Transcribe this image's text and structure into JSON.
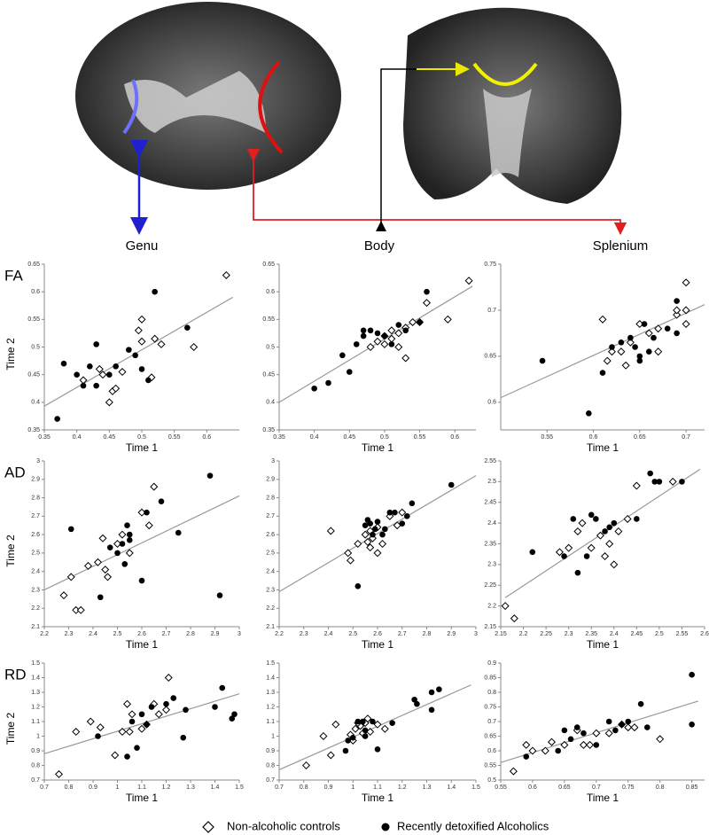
{
  "figure": {
    "regions": [
      "Genu",
      "Body",
      "Splenium"
    ]
  },
  "chart_data": [
    {
      "type": "scatter",
      "label": "FA",
      "xlabel": "Time 1",
      "ylabel": "Time 2",
      "xlim": [
        0.35,
        0.65
      ],
      "xticks": [
        0.35,
        0.4,
        0.45,
        0.5,
        0.55,
        0.6
      ],
      "ylim": [
        0.35,
        0.65
      ],
      "yticks": [
        0.35,
        0.4,
        0.45,
        0.5,
        0.55,
        0.6,
        0.65
      ],
      "series": [
        {
          "name": "Non-alcoholic controls",
          "marker": "diamond",
          "color": "#000000",
          "x": [
            0.63,
            0.5,
            0.58,
            0.53,
            0.52,
            0.5,
            0.515,
            0.47,
            0.455,
            0.46,
            0.45,
            0.44,
            0.435,
            0.41,
            0.495
          ],
          "values": [
            0.63,
            0.55,
            0.5,
            0.505,
            0.515,
            0.51,
            0.445,
            0.455,
            0.42,
            0.425,
            0.4,
            0.45,
            0.46,
            0.44,
            0.53
          ]
        },
        {
          "name": "Recently detoxified Alcoholics",
          "marker": "circle",
          "color": "#000000",
          "x": [
            0.37,
            0.38,
            0.4,
            0.41,
            0.42,
            0.43,
            0.43,
            0.45,
            0.46,
            0.48,
            0.49,
            0.5,
            0.51,
            0.52,
            0.57
          ],
          "values": [
            0.37,
            0.47,
            0.45,
            0.43,
            0.465,
            0.43,
            0.505,
            0.45,
            0.465,
            0.495,
            0.485,
            0.46,
            0.44,
            0.6,
            0.535
          ]
        }
      ],
      "trendline": {
        "color": "#999999",
        "x": [
          0.35,
          0.64
        ],
        "values": [
          0.393,
          0.59
        ]
      }
    },
    {
      "type": "scatter",
      "xlabel": "Time 1",
      "xlim": [
        0.35,
        0.63
      ],
      "xticks": [
        0.35,
        0.4,
        0.45,
        0.5,
        0.55,
        0.6
      ],
      "ylim": [
        0.35,
        0.65
      ],
      "yticks": [
        0.35,
        0.4,
        0.45,
        0.5,
        0.55,
        0.6,
        0.65
      ],
      "series": [
        {
          "marker": "diamond",
          "color": "#000000",
          "x": [
            0.62,
            0.56,
            0.59,
            0.53,
            0.54,
            0.53,
            0.52,
            0.51,
            0.5,
            0.49,
            0.48,
            0.5,
            0.52,
            0.55,
            0.51
          ],
          "values": [
            0.62,
            0.58,
            0.55,
            0.48,
            0.545,
            0.535,
            0.525,
            0.515,
            0.505,
            0.51,
            0.5,
            0.52,
            0.5,
            0.545,
            0.53
          ]
        },
        {
          "marker": "circle",
          "color": "#000000",
          "x": [
            0.4,
            0.42,
            0.44,
            0.45,
            0.46,
            0.47,
            0.48,
            0.49,
            0.5,
            0.51,
            0.52,
            0.53,
            0.55,
            0.56,
            0.47
          ],
          "values": [
            0.425,
            0.435,
            0.485,
            0.455,
            0.505,
            0.52,
            0.53,
            0.525,
            0.52,
            0.505,
            0.54,
            0.53,
            0.545,
            0.6,
            0.53
          ]
        }
      ],
      "trendline": {
        "color": "#999999",
        "x": [
          0.35,
          0.625
        ],
        "values": [
          0.4,
          0.61
        ]
      }
    },
    {
      "type": "scatter",
      "xlabel": "Time 1",
      "xlim": [
        0.5,
        0.72
      ],
      "xticks": [
        0.55,
        0.6,
        0.65,
        0.7
      ],
      "ylim": [
        0.57,
        0.75
      ],
      "yticks": [
        0.6,
        0.65,
        0.7,
        0.75
      ],
      "series": [
        {
          "marker": "diamond",
          "color": "#000000",
          "x": [
            0.7,
            0.61,
            0.7,
            0.69,
            0.7,
            0.67,
            0.66,
            0.65,
            0.64,
            0.63,
            0.62,
            0.615,
            0.67,
            0.635,
            0.69
          ],
          "values": [
            0.73,
            0.69,
            0.7,
            0.695,
            0.685,
            0.68,
            0.675,
            0.685,
            0.665,
            0.655,
            0.655,
            0.645,
            0.655,
            0.64,
            0.7
          ]
        },
        {
          "marker": "circle",
          "color": "#000000",
          "x": [
            0.545,
            0.595,
            0.61,
            0.62,
            0.63,
            0.64,
            0.645,
            0.65,
            0.65,
            0.66,
            0.665,
            0.68,
            0.69,
            0.69,
            0.655
          ],
          "values": [
            0.645,
            0.588,
            0.632,
            0.66,
            0.665,
            0.67,
            0.66,
            0.65,
            0.645,
            0.655,
            0.67,
            0.68,
            0.675,
            0.71,
            0.685
          ]
        }
      ],
      "trendline": {
        "color": "#999999",
        "x": [
          0.5,
          0.72
        ],
        "values": [
          0.605,
          0.706
        ]
      }
    },
    {
      "type": "scatter",
      "label": "AD",
      "xlabel": "Time 1",
      "ylabel": "Time 2",
      "xlim": [
        2.2,
        3
      ],
      "xticks": [
        2.2,
        2.3,
        2.4,
        2.5,
        2.6,
        2.7,
        2.8,
        2.9,
        3
      ],
      "ylim": [
        2.1,
        3
      ],
      "yticks": [
        2.1,
        2.2,
        2.3,
        2.4,
        2.5,
        2.6,
        2.7,
        2.8,
        2.9,
        3
      ],
      "series": [
        {
          "marker": "diamond",
          "color": "#000000",
          "x": [
            2.28,
            2.31,
            2.33,
            2.35,
            2.38,
            2.42,
            2.44,
            2.45,
            2.46,
            2.5,
            2.52,
            2.55,
            2.63,
            2.65,
            2.6
          ],
          "values": [
            2.27,
            2.37,
            2.19,
            2.19,
            2.43,
            2.45,
            2.58,
            2.41,
            2.37,
            2.55,
            2.6,
            2.5,
            2.65,
            2.86,
            2.72
          ]
        },
        {
          "marker": "circle",
          "color": "#000000",
          "x": [
            2.31,
            2.43,
            2.47,
            2.5,
            2.52,
            2.53,
            2.54,
            2.55,
            2.6,
            2.62,
            2.68,
            2.75,
            2.88,
            2.92,
            2.55
          ],
          "values": [
            2.63,
            2.26,
            2.53,
            2.5,
            2.55,
            2.44,
            2.65,
            2.57,
            2.35,
            2.72,
            2.78,
            2.61,
            2.92,
            2.27,
            2.6
          ]
        }
      ],
      "trendline": {
        "color": "#999999",
        "x": [
          2.2,
          3
        ],
        "values": [
          2.3,
          2.81
        ]
      }
    },
    {
      "type": "scatter",
      "xlabel": "Time 1",
      "xlim": [
        2.2,
        3
      ],
      "xticks": [
        2.2,
        2.3,
        2.4,
        2.5,
        2.6,
        2.7,
        2.8,
        2.9,
        3
      ],
      "ylim": [
        2.1,
        3
      ],
      "yticks": [
        2.1,
        2.2,
        2.3,
        2.4,
        2.5,
        2.6,
        2.7,
        2.8,
        2.9,
        3
      ],
      "series": [
        {
          "marker": "diamond",
          "color": "#000000",
          "x": [
            2.41,
            2.48,
            2.49,
            2.52,
            2.55,
            2.57,
            2.58,
            2.6,
            2.62,
            2.65,
            2.6,
            2.57,
            2.68,
            2.7,
            2.56
          ],
          "values": [
            2.62,
            2.5,
            2.46,
            2.55,
            2.6,
            2.62,
            2.58,
            2.5,
            2.55,
            2.7,
            2.64,
            2.53,
            2.65,
            2.72,
            2.56
          ]
        },
        {
          "marker": "circle",
          "color": "#000000",
          "x": [
            2.52,
            2.55,
            2.56,
            2.57,
            2.58,
            2.6,
            2.62,
            2.63,
            2.65,
            2.67,
            2.7,
            2.72,
            2.74,
            2.9,
            2.59
          ],
          "values": [
            2.32,
            2.65,
            2.68,
            2.66,
            2.6,
            2.67,
            2.6,
            2.63,
            2.72,
            2.72,
            2.66,
            2.7,
            2.77,
            2.87,
            2.63
          ]
        }
      ],
      "trendline": {
        "color": "#999999",
        "x": [
          2.2,
          3
        ],
        "values": [
          2.29,
          2.92
        ]
      }
    },
    {
      "type": "scatter",
      "xlabel": "Time 1",
      "xlim": [
        2.15,
        2.6
      ],
      "xticks": [
        2.15,
        2.2,
        2.25,
        2.3,
        2.35,
        2.4,
        2.45,
        2.5,
        2.55,
        2.6
      ],
      "ylim": [
        2.15,
        2.55
      ],
      "yticks": [
        2.15,
        2.2,
        2.25,
        2.3,
        2.35,
        2.4,
        2.45,
        2.5,
        2.55
      ],
      "series": [
        {
          "marker": "diamond",
          "color": "#000000",
          "x": [
            2.16,
            2.18,
            2.28,
            2.3,
            2.32,
            2.33,
            2.35,
            2.38,
            2.39,
            2.4,
            2.41,
            2.43,
            2.45,
            2.53,
            2.37
          ],
          "values": [
            2.2,
            2.17,
            2.33,
            2.34,
            2.38,
            2.4,
            2.34,
            2.32,
            2.35,
            2.3,
            2.38,
            2.41,
            2.49,
            2.5,
            2.37
          ]
        },
        {
          "marker": "circle",
          "color": "#000000",
          "x": [
            2.22,
            2.29,
            2.31,
            2.32,
            2.34,
            2.35,
            2.38,
            2.39,
            2.4,
            2.45,
            2.48,
            2.5,
            2.49,
            2.55,
            2.36
          ],
          "values": [
            2.33,
            2.32,
            2.41,
            2.28,
            2.32,
            2.42,
            2.38,
            2.39,
            2.4,
            2.41,
            2.52,
            2.5,
            2.5,
            2.5,
            2.41
          ]
        }
      ],
      "trendline": {
        "color": "#999999",
        "x": [
          2.16,
          2.59
        ],
        "values": [
          2.22,
          2.53
        ]
      }
    },
    {
      "type": "scatter",
      "label": "RD",
      "xlabel": "Time 1",
      "ylabel": "Time 2",
      "xlim": [
        0.7,
        1.5
      ],
      "xticks": [
        0.7,
        0.8,
        0.9,
        1,
        1.1,
        1.2,
        1.3,
        1.4,
        1.5
      ],
      "ylim": [
        0.7,
        1.5
      ],
      "yticks": [
        0.7,
        0.8,
        0.9,
        1,
        1.1,
        1.2,
        1.3,
        1.4,
        1.5
      ],
      "series": [
        {
          "marker": "diamond",
          "color": "#000000",
          "x": [
            0.76,
            0.83,
            0.89,
            0.93,
            0.99,
            1.02,
            1.04,
            1.06,
            1.1,
            1.12,
            1.15,
            1.17,
            1.2,
            1.21,
            1.05
          ],
          "values": [
            0.74,
            1.03,
            1.1,
            1.06,
            0.87,
            1.03,
            1.22,
            1.15,
            1.05,
            1.08,
            1.22,
            1.15,
            1.18,
            1.4,
            1.03
          ]
        },
        {
          "marker": "circle",
          "color": "#000000",
          "x": [
            0.92,
            1.04,
            1.06,
            1.08,
            1.1,
            1.12,
            1.14,
            1.2,
            1.23,
            1.27,
            1.28,
            1.4,
            1.43,
            1.47,
            1.48
          ],
          "values": [
            1.0,
            0.86,
            1.1,
            0.92,
            1.15,
            1.08,
            1.2,
            1.22,
            1.26,
            0.99,
            1.18,
            1.2,
            1.33,
            1.12,
            1.15
          ]
        }
      ],
      "trendline": {
        "color": "#999999",
        "x": [
          0.7,
          1.5
        ],
        "values": [
          0.88,
          1.29
        ]
      }
    },
    {
      "type": "scatter",
      "xlabel": "Time 1",
      "xlim": [
        0.7,
        1.5
      ],
      "xticks": [
        0.7,
        0.8,
        0.9,
        1,
        1.1,
        1.2,
        1.3,
        1.4,
        1.5
      ],
      "ylim": [
        0.7,
        1.5
      ],
      "yticks": [
        0.7,
        0.8,
        0.9,
        1,
        1.1,
        1.2,
        1.3,
        1.4,
        1.5
      ],
      "series": [
        {
          "marker": "diamond",
          "color": "#000000",
          "x": [
            0.81,
            0.88,
            0.91,
            0.93,
            1.0,
            1.01,
            1.03,
            1.04,
            1.05,
            1.07,
            1.1,
            1.13,
            1.02,
            1.06,
            0.99
          ],
          "values": [
            0.8,
            1.0,
            0.87,
            1.08,
            0.97,
            1.05,
            1.07,
            1.02,
            1.09,
            1.03,
            1.08,
            1.05,
            1.09,
            1.12,
            1.01
          ]
        },
        {
          "marker": "circle",
          "color": "#000000",
          "x": [
            0.97,
            0.98,
            1.0,
            1.02,
            1.04,
            1.05,
            1.08,
            1.1,
            1.16,
            1.25,
            1.26,
            1.32,
            1.32,
            1.35,
            1.05
          ],
          "values": [
            0.9,
            0.97,
            0.99,
            1.1,
            1.1,
            1.0,
            1.1,
            0.91,
            1.09,
            1.25,
            1.22,
            1.18,
            1.3,
            1.32,
            1.04
          ]
        }
      ],
      "trendline": {
        "color": "#999999",
        "x": [
          0.7,
          1.48
        ],
        "values": [
          0.77,
          1.35
        ]
      }
    },
    {
      "type": "scatter",
      "xlabel": "Time 1",
      "xlim": [
        0.55,
        0.87
      ],
      "xticks": [
        0.55,
        0.6,
        0.65,
        0.7,
        0.75,
        0.8,
        0.85
      ],
      "ylim": [
        0.5,
        0.9
      ],
      "yticks": [
        0.5,
        0.55,
        0.6,
        0.65,
        0.7,
        0.75,
        0.8,
        0.85,
        0.9
      ],
      "series": [
        {
          "marker": "diamond",
          "color": "#000000",
          "x": [
            0.57,
            0.59,
            0.6,
            0.62,
            0.63,
            0.65,
            0.67,
            0.68,
            0.69,
            0.7,
            0.72,
            0.75,
            0.76,
            0.8,
            0.74
          ],
          "values": [
            0.53,
            0.62,
            0.6,
            0.6,
            0.63,
            0.62,
            0.67,
            0.62,
            0.62,
            0.66,
            0.66,
            0.68,
            0.68,
            0.64,
            0.69
          ]
        },
        {
          "marker": "circle",
          "color": "#000000",
          "x": [
            0.59,
            0.64,
            0.65,
            0.66,
            0.67,
            0.68,
            0.7,
            0.72,
            0.73,
            0.74,
            0.75,
            0.77,
            0.78,
            0.85,
            0.85
          ],
          "values": [
            0.58,
            0.6,
            0.67,
            0.64,
            0.68,
            0.66,
            0.62,
            0.7,
            0.67,
            0.69,
            0.7,
            0.76,
            0.68,
            0.86,
            0.69
          ]
        }
      ],
      "trendline": {
        "color": "#999999",
        "x": [
          0.55,
          0.86
        ],
        "values": [
          0.56,
          0.77
        ]
      }
    }
  ]
}
